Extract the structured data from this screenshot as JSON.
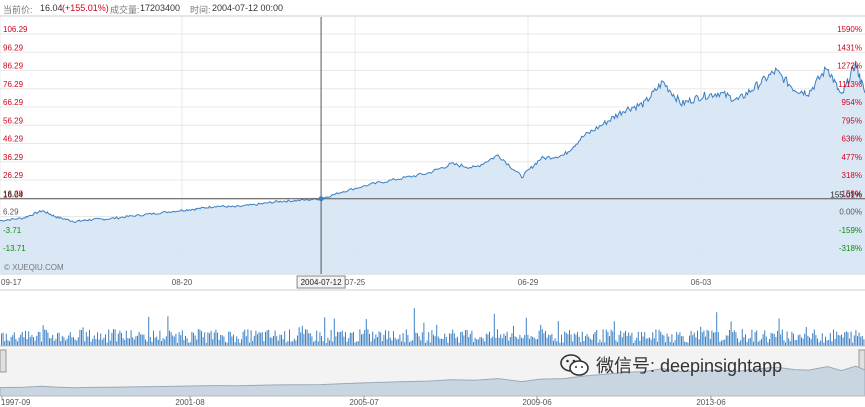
{
  "info": {
    "price_label": "当前价:",
    "price_value": "16.04",
    "price_change": "(+155.01%)",
    "volume_label": "成交量:",
    "volume_value": "17203400",
    "time_label": "时间:",
    "time_value": "2004-07-12 00:00"
  },
  "colors": {
    "up": "#d0021b",
    "down": "#0a8a0a",
    "line": "#3a7fc1",
    "fill": "#d6e6f5",
    "grid": "#e8e8e8",
    "volume": "#3b82c4"
  },
  "crosshair": {
    "date_label": "2004-07-12",
    "price_label": "16.04",
    "pct_label": "155.01%"
  },
  "source_label": "© XUEQIU.COM",
  "watermark": "微信号: deepinsightapp",
  "chart_data": {
    "type": "line",
    "ylim": [
      -13.71,
      106.29
    ],
    "left_ticks": [
      "106.29",
      "96.29",
      "86.29",
      "76.29",
      "66.29",
      "56.29",
      "46.29",
      "36.29",
      "26.29",
      "16.29",
      "6.29",
      "-3.71",
      "-13.71"
    ],
    "right_ticks": [
      "1590%",
      "1431%",
      "1272%",
      "1113%",
      "954%",
      "795%",
      "636%",
      "477%",
      "318%",
      "159%",
      "0.00%",
      "-159%",
      "-318%"
    ],
    "x_ticks": [
      "09-17",
      "08-20",
      "07-25",
      "06-29",
      "06-03"
    ],
    "nav_ticks": [
      "1997-09",
      "2001-08",
      "2005-07",
      "2009-06",
      "2013-06"
    ],
    "series": [
      {
        "x": [
          1997.7,
          1998.2,
          1998.6,
          1998.9,
          1999.3,
          1999.6,
          2000.0,
          2000.5,
          2001.0,
          2001.5,
          2001.9,
          2002.3,
          2002.7,
          2003.2,
          2003.6,
          2004.0,
          2004.53,
          2005.0,
          2005.6,
          2006.2,
          2006.8,
          2007.3,
          2007.8,
          2008.3,
          2008.8,
          2009.2,
          2009.7,
          2010.1,
          2010.6,
          2011.0,
          2011.4,
          2011.8,
          2012.2,
          2012.6,
          2013.0,
          2013.4,
          2013.8,
          2014.2,
          2014.6,
          2014.9,
          2015.3,
          2015.6,
          2015.9,
          2016.1
        ],
        "values": [
          4.0,
          5.5,
          9.5,
          6.0,
          3.5,
          4.5,
          5.0,
          6.5,
          8.0,
          9.5,
          10.5,
          12.0,
          11.5,
          13.0,
          14.5,
          15.0,
          16.04,
          20.0,
          24.0,
          27.0,
          30.0,
          35.0,
          33.0,
          40.0,
          28.0,
          38.0,
          40.0,
          50.0,
          58.0,
          65.0,
          68.0,
          80.0,
          68.0,
          72.0,
          74.0,
          70.0,
          78.0,
          86.0,
          76.0,
          74.0,
          88.0,
          72.0,
          90.0,
          74.0
        ]
      }
    ]
  }
}
